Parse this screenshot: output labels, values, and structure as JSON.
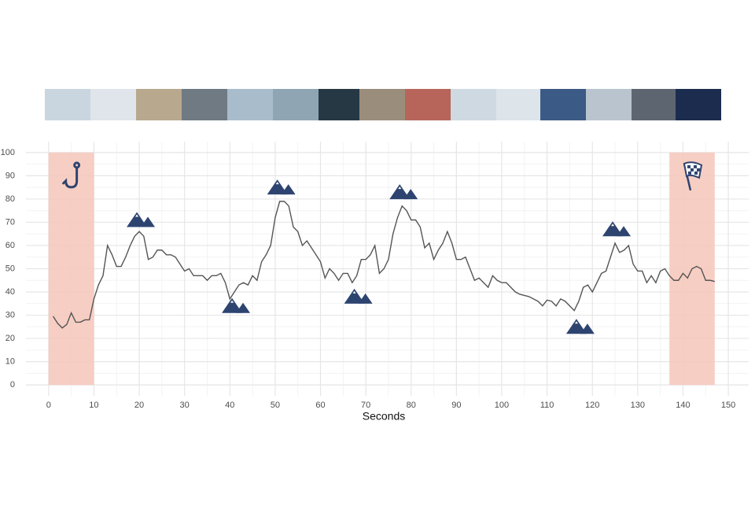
{
  "chart_data": {
    "type": "line",
    "x_label": "Seconds",
    "x": [
      1,
      2,
      3,
      4,
      5,
      6,
      7,
      8,
      9,
      10,
      11,
      12,
      13,
      14,
      15,
      16,
      17,
      18,
      19,
      20,
      21,
      22,
      23,
      24,
      25,
      26,
      27,
      28,
      29,
      30,
      31,
      32,
      33,
      34,
      35,
      36,
      37,
      38,
      39,
      40,
      41,
      42,
      43,
      44,
      45,
      46,
      47,
      48,
      49,
      50,
      51,
      52,
      53,
      54,
      55,
      56,
      57,
      58,
      59,
      60,
      61,
      62,
      63,
      64,
      65,
      66,
      67,
      68,
      69,
      70,
      71,
      72,
      73,
      74,
      75,
      76,
      77,
      78,
      79,
      80,
      81,
      82,
      83,
      84,
      85,
      86,
      87,
      88,
      89,
      90,
      91,
      92,
      93,
      94,
      95,
      96,
      97,
      98,
      99,
      100,
      101,
      102,
      103,
      104,
      105,
      106,
      107,
      108,
      109,
      110,
      111,
      112,
      113,
      114,
      115,
      116,
      117,
      118,
      119,
      120,
      121,
      122,
      123,
      124,
      125,
      126,
      127,
      128,
      129,
      130,
      131,
      132,
      133,
      134,
      135,
      136,
      137,
      138,
      139,
      140,
      141,
      142,
      143,
      144,
      145,
      146,
      147
    ],
    "series": [
      {
        "color": "#555555",
        "values": [
          29.5,
          26.5,
          24.5,
          26,
          31,
          27,
          27,
          28,
          28,
          37,
          43,
          47,
          60,
          56,
          51,
          51,
          55,
          60,
          64,
          66,
          64,
          54,
          55,
          58,
          58,
          56,
          56,
          55,
          52,
          49,
          50,
          47,
          47,
          47,
          45,
          47,
          47,
          48,
          44,
          37,
          40,
          43,
          44,
          43,
          47,
          45,
          53,
          56,
          60,
          72,
          79,
          79,
          77,
          68,
          66,
          60,
          62,
          59,
          56,
          53,
          46,
          50,
          48,
          45,
          48,
          48,
          44,
          47,
          54,
          54,
          56,
          60,
          48,
          50,
          54,
          65,
          72,
          77,
          75,
          71,
          71,
          68,
          59,
          61,
          54,
          58,
          61,
          66,
          61,
          54,
          54,
          55,
          50,
          45,
          46,
          44,
          42,
          47,
          45,
          44,
          44,
          42,
          40,
          39,
          38.5,
          38,
          37,
          36,
          34,
          36.5,
          36,
          34,
          37,
          36,
          34,
          32,
          36,
          42,
          43,
          40,
          44,
          48,
          49,
          55,
          61,
          57,
          58,
          60,
          52,
          49,
          49,
          44,
          47,
          44,
          49,
          50,
          47,
          45,
          45,
          48,
          46,
          50,
          51,
          50,
          45,
          45,
          44.5
        ]
      }
    ],
    "xlim": [
      -5,
      154.5
    ],
    "ylim": [
      -4.7,
      104.7
    ],
    "xticks": [
      0,
      10,
      20,
      30,
      40,
      50,
      60,
      70,
      80,
      90,
      100,
      110,
      120,
      130,
      140,
      150
    ],
    "yticks": [
      0,
      10,
      20,
      30,
      40,
      50,
      60,
      70,
      80,
      90,
      100
    ],
    "grid": true,
    "highlight_regions": [
      [
        0,
        10
      ],
      [
        137,
        147
      ]
    ],
    "highlight_color": "#f6c6b8",
    "markers": [
      {
        "x": 20,
        "y": 71
      },
      {
        "x": 41,
        "y": 34
      },
      {
        "x": 51,
        "y": 85
      },
      {
        "x": 68,
        "y": 38
      },
      {
        "x": 78,
        "y": 83
      },
      {
        "x": 117,
        "y": 25
      },
      {
        "x": 125,
        "y": 67
      }
    ],
    "marker_color": "#2e4470"
  }
}
